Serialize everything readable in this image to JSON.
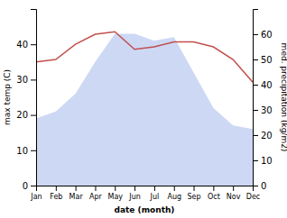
{
  "chart_data": {
    "type": "area",
    "x_label": "date (month)",
    "y_label": "max temp (C)",
    "y2_label": "med. precipitation (kg/m2)",
    "categories": [
      "Jan",
      "Feb",
      "Mar",
      "Apr",
      "May",
      "Jun",
      "Jul",
      "Aug",
      "Sep",
      "Oct",
      "Nov",
      "Dec"
    ],
    "series": [
      {
        "type": "area",
        "color": "#b8c8f0",
        "values": [
          19,
          21,
          26,
          35,
          43,
          43,
          41,
          42,
          32,
          22,
          17,
          16
        ]
      },
      {
        "type": "line",
        "color": "#c0504d",
        "axis": "y2",
        "values": [
          49,
          50,
          56,
          60,
          61,
          54,
          55,
          57,
          57,
          55,
          50,
          41
        ]
      }
    ],
    "ylim": [
      0,
      50
    ],
    "yticks": [
      0,
      10,
      20,
      30,
      40
    ],
    "y2lim": [
      0,
      70
    ],
    "y2ticks": [
      0,
      10,
      20,
      30,
      40,
      50,
      60
    ],
    "grid": false
  }
}
